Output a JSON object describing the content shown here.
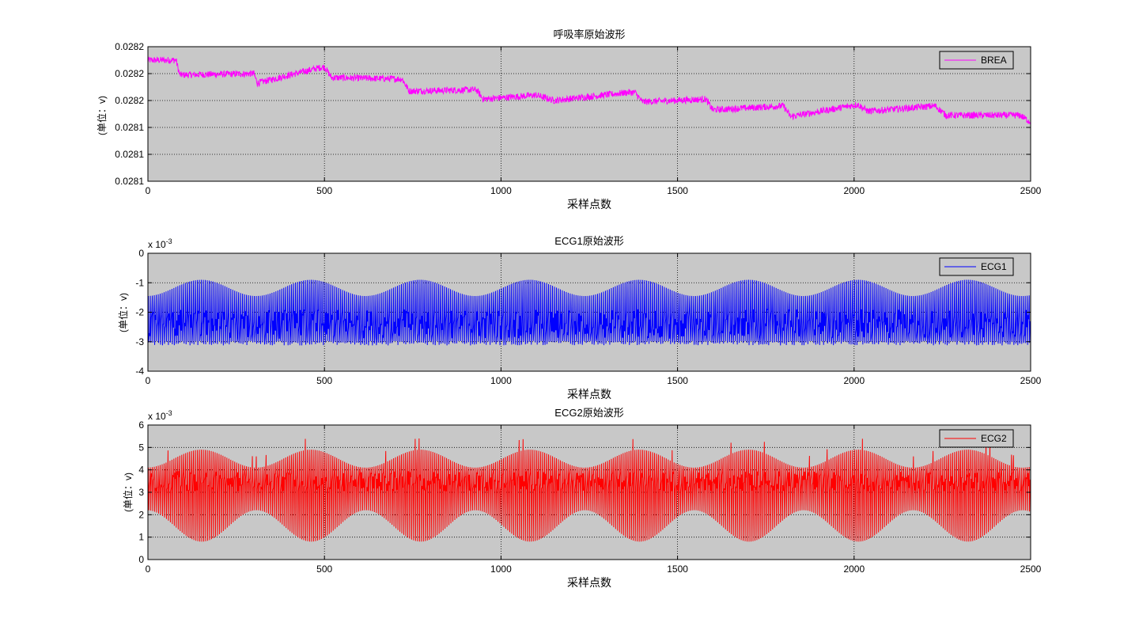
{
  "chart_data": [
    {
      "type": "line",
      "title": "呼吸率原始波形",
      "xlabel": "采样点数",
      "ylabel": "(单位：v)",
      "exponent_label": "",
      "xlim": [
        0,
        2500
      ],
      "ylim": [
        0.02812,
        0.02822
      ],
      "xticks": [
        0,
        500,
        1000,
        1500,
        2000,
        2500
      ],
      "xtick_labels": [
        "0",
        "500",
        "1000",
        "1500",
        "2000",
        "2500"
      ],
      "yticks": [
        0.02812,
        0.02814,
        0.02816,
        0.02818,
        0.0282,
        0.02822
      ],
      "ytick_labels": [
        "0.0281",
        "0.0281",
        "0.0281",
        "0.0282",
        "0.0282",
        "0.0282"
      ],
      "grid": true,
      "legend_position": "top-right",
      "series": [
        {
          "name": "BREA",
          "color": "#ff00ff",
          "noise": 2.5e-06,
          "points": [
            [
              0,
              0.02821
            ],
            [
              80,
              0.02821
            ],
            [
              90,
              0.028199
            ],
            [
              300,
              0.0282
            ],
            [
              310,
              0.028193
            ],
            [
              480,
              0.028204
            ],
            [
              500,
              0.028205
            ],
            [
              520,
              0.028197
            ],
            [
              720,
              0.028196
            ],
            [
              740,
              0.028187
            ],
            [
              930,
              0.028188
            ],
            [
              950,
              0.028181
            ],
            [
              1100,
              0.028184
            ],
            [
              1150,
              0.02818
            ],
            [
              1360,
              0.028186
            ],
            [
              1380,
              0.028186
            ],
            [
              1400,
              0.028179
            ],
            [
              1580,
              0.028181
            ],
            [
              1600,
              0.028173
            ],
            [
              1800,
              0.028176
            ],
            [
              1820,
              0.028168
            ],
            [
              2010,
              0.028177
            ],
            [
              2040,
              0.028172
            ],
            [
              2230,
              0.028176
            ],
            [
              2260,
              0.028169
            ],
            [
              2470,
              0.028169
            ],
            [
              2500,
              0.028164
            ]
          ]
        }
      ]
    },
    {
      "type": "line",
      "title": "ECG1原始波形",
      "xlabel": "采样点数",
      "ylabel": "(单位：v)",
      "exponent_label": "x 10",
      "exponent_power": "-3",
      "xlim": [
        0,
        2500
      ],
      "ylim": [
        -4,
        0
      ],
      "xticks": [
        0,
        500,
        1000,
        1500,
        2000,
        2500
      ],
      "xtick_labels": [
        "0",
        "500",
        "1000",
        "1500",
        "2000",
        "2500"
      ],
      "yticks": [
        -4,
        -3,
        -2,
        -1,
        0
      ],
      "ytick_labels": [
        "-4",
        "-3",
        "-2",
        "-1",
        "0"
      ],
      "grid": true,
      "legend_position": "top-right",
      "series": [
        {
          "name": "ECG1",
          "color": "#0000ff",
          "kind": "ecg",
          "baseline": -3.05,
          "peak_low": -1.45,
          "peak_high": -0.9,
          "period": 310,
          "beats": 450,
          "fill_low": -2.9,
          "fill_high": -1.9
        }
      ]
    },
    {
      "type": "line",
      "title": "ECG2原始波形",
      "xlabel": "采样点数",
      "ylabel": "(单位：v)",
      "exponent_label": "x 10",
      "exponent_power": "-3",
      "xlim": [
        0,
        2500
      ],
      "ylim": [
        0,
        6
      ],
      "xticks": [
        0,
        500,
        1000,
        1500,
        2000,
        2500
      ],
      "xtick_labels": [
        "0",
        "500",
        "1000",
        "1500",
        "2000",
        "2500"
      ],
      "yticks": [
        0,
        1,
        2,
        3,
        4,
        5,
        6
      ],
      "ytick_labels": [
        "0",
        "1",
        "2",
        "3",
        "4",
        "5",
        "6"
      ],
      "grid": true,
      "legend_position": "top-right",
      "series": [
        {
          "name": "ECG2",
          "color": "#ff0000",
          "kind": "ecg2",
          "center": 3.5,
          "upper_low": 4.1,
          "upper_high": 4.9,
          "lower_low": 2.2,
          "lower_high": 0.8,
          "period": 310,
          "beats": 450
        }
      ]
    }
  ]
}
